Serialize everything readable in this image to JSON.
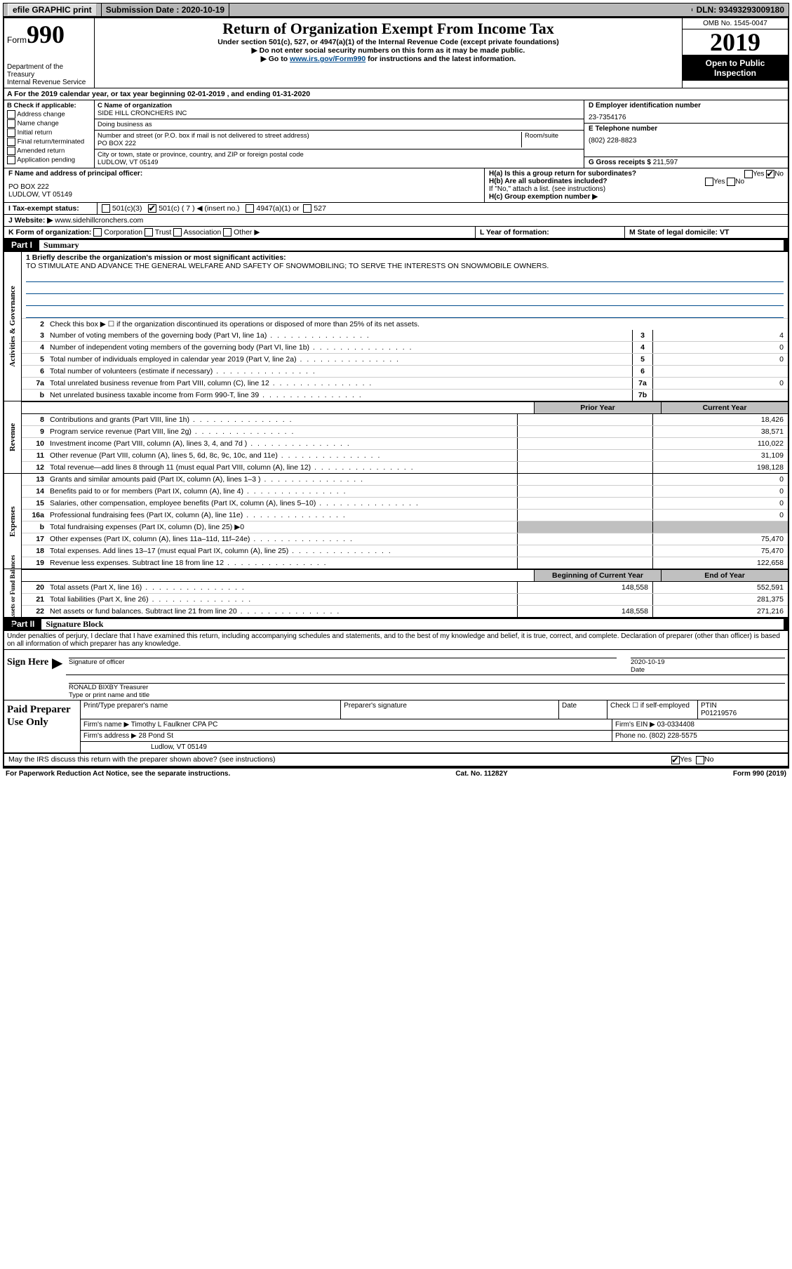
{
  "topbar": {
    "efile": "efile GRAPHIC print",
    "submission_label": "Submission Date : 2020-10-19",
    "dln": "DLN: 93493293009180"
  },
  "header": {
    "form_label": "Form",
    "form_no": "990",
    "dept": "Department of the Treasury\nInternal Revenue Service",
    "title": "Return of Organization Exempt From Income Tax",
    "sub1": "Under section 501(c), 527, or 4947(a)(1) of the Internal Revenue Code (except private foundations)",
    "sub2": "▶ Do not enter social security numbers on this form as it may be made public.",
    "sub3_pre": "▶ Go to ",
    "sub3_link": "www.irs.gov/Form990",
    "sub3_post": " for instructions and the latest information.",
    "omb": "OMB No. 1545-0047",
    "year": "2019",
    "open": "Open to Public Inspection"
  },
  "rowA": "A  For the 2019 calendar year, or tax year beginning 02-01-2019    , and ending 01-31-2020",
  "colB": {
    "label": "B Check if applicable:",
    "items": [
      "Address change",
      "Name change",
      "Initial return",
      "Final return/terminated",
      "Amended return",
      "Application pending"
    ]
  },
  "colC": {
    "name_label": "C Name of organization",
    "name": "SIDE HILL CRONCHERS INC",
    "dba_label": "Doing business as",
    "addr_label": "Number and street (or P.O. box if mail is not delivered to street address)",
    "addr": "PO BOX 222",
    "room_label": "Room/suite",
    "city_label": "City or town, state or province, country, and ZIP or foreign postal code",
    "city": "LUDLOW, VT  05149"
  },
  "colD": {
    "label": "D Employer identification number",
    "val": "23-7354176"
  },
  "colE": {
    "label": "E Telephone number",
    "val": "(802) 228-8823"
  },
  "colG": {
    "label": "G Gross receipts $",
    "val": "211,597"
  },
  "colF": {
    "label": "F  Name and address of principal officer:",
    "addr1": "PO BOX 222",
    "addr2": "LUDLOW, VT  05149"
  },
  "colH": {
    "a": "H(a)  Is this a group return for subordinates?",
    "a_yes": "Yes",
    "a_no": "No",
    "b": "H(b)  Are all subordinates included?",
    "b_note": "If \"No,\" attach a list. (see instructions)",
    "c": "H(c)  Group exemption number ▶"
  },
  "rowI": {
    "label": "I  Tax-exempt status:",
    "o1": "501(c)(3)",
    "o2": "501(c) ( 7 ) ◀ (insert no.)",
    "o3": "4947(a)(1) or",
    "o4": "527"
  },
  "rowJ": {
    "label": "J  Website: ▶",
    "val": "www.sidehillcronchers.com"
  },
  "rowK": {
    "label": "K Form of organization:",
    "o": [
      "Corporation",
      "Trust",
      "Association",
      "Other ▶"
    ]
  },
  "rowL": {
    "label": "L Year of formation:",
    "val": ""
  },
  "rowM": {
    "label": "M State of legal domicile: VT"
  },
  "part1": {
    "num": "Part I",
    "title": "Summary"
  },
  "mission": {
    "label": "1  Briefly describe the organization's mission or most significant activities:",
    "text": "TO STIMULATE AND ADVANCE THE GENERAL WELFARE AND SAFETY OF SNOWMOBILING; TO SERVE THE INTERESTS ON SNOWMOBILE OWNERS."
  },
  "gov": {
    "label": "Activities & Governance",
    "l2": "Check this box ▶ ☐  if the organization discontinued its operations or disposed of more than 25% of its net assets.",
    "lines": [
      {
        "n": "3",
        "d": "Number of voting members of the governing body (Part VI, line 1a)",
        "b": "3",
        "v": "4"
      },
      {
        "n": "4",
        "d": "Number of independent voting members of the governing body (Part VI, line 1b)",
        "b": "4",
        "v": "0"
      },
      {
        "n": "5",
        "d": "Total number of individuals employed in calendar year 2019 (Part V, line 2a)",
        "b": "5",
        "v": "0"
      },
      {
        "n": "6",
        "d": "Total number of volunteers (estimate if necessary)",
        "b": "6",
        "v": ""
      },
      {
        "n": "7a",
        "d": "Total unrelated business revenue from Part VIII, column (C), line 12",
        "b": "7a",
        "v": "0"
      },
      {
        "n": "b",
        "d": "Net unrelated business taxable income from Form 990-T, line 39",
        "b": "7b",
        "v": ""
      }
    ]
  },
  "rev": {
    "label": "Revenue",
    "hdr": [
      "Prior Year",
      "Current Year"
    ],
    "lines": [
      {
        "n": "8",
        "d": "Contributions and grants (Part VIII, line 1h)",
        "p": "",
        "c": "18,426"
      },
      {
        "n": "9",
        "d": "Program service revenue (Part VIII, line 2g)",
        "p": "",
        "c": "38,571"
      },
      {
        "n": "10",
        "d": "Investment income (Part VIII, column (A), lines 3, 4, and 7d )",
        "p": "",
        "c": "110,022"
      },
      {
        "n": "11",
        "d": "Other revenue (Part VIII, column (A), lines 5, 6d, 8c, 9c, 10c, and 11e)",
        "p": "",
        "c": "31,109"
      },
      {
        "n": "12",
        "d": "Total revenue—add lines 8 through 11 (must equal Part VIII, column (A), line 12)",
        "p": "",
        "c": "198,128"
      }
    ]
  },
  "exp": {
    "label": "Expenses",
    "lines": [
      {
        "n": "13",
        "d": "Grants and similar amounts paid (Part IX, column (A), lines 1–3 )",
        "p": "",
        "c": "0"
      },
      {
        "n": "14",
        "d": "Benefits paid to or for members (Part IX, column (A), line 4)",
        "p": "",
        "c": "0"
      },
      {
        "n": "15",
        "d": "Salaries, other compensation, employee benefits (Part IX, column (A), lines 5–10)",
        "p": "",
        "c": "0"
      },
      {
        "n": "16a",
        "d": "Professional fundraising fees (Part IX, column (A), line 11e)",
        "p": "",
        "c": "0"
      },
      {
        "n": "b",
        "d": "Total fundraising expenses (Part IX, column (D), line 25) ▶0",
        "shade": true
      },
      {
        "n": "17",
        "d": "Other expenses (Part IX, column (A), lines 11a–11d, 11f–24e)",
        "p": "",
        "c": "75,470"
      },
      {
        "n": "18",
        "d": "Total expenses. Add lines 13–17 (must equal Part IX, column (A), line 25)",
        "p": "",
        "c": "75,470"
      },
      {
        "n": "19",
        "d": "Revenue less expenses. Subtract line 18 from line 12",
        "p": "",
        "c": "122,658"
      }
    ]
  },
  "net": {
    "label": "Net Assets or Fund Balances",
    "hdr": [
      "Beginning of Current Year",
      "End of Year"
    ],
    "lines": [
      {
        "n": "20",
        "d": "Total assets (Part X, line 16)",
        "p": "148,558",
        "c": "552,591"
      },
      {
        "n": "21",
        "d": "Total liabilities (Part X, line 26)",
        "p": "",
        "c": "281,375"
      },
      {
        "n": "22",
        "d": "Net assets or fund balances. Subtract line 21 from line 20",
        "p": "148,558",
        "c": "271,216"
      }
    ]
  },
  "part2": {
    "num": "Part II",
    "title": "Signature Block"
  },
  "penalty": "Under penalties of perjury, I declare that I have examined this return, including accompanying schedules and statements, and to the best of my knowledge and belief, it is true, correct, and complete. Declaration of preparer (other than officer) is based on all information of which preparer has any knowledge.",
  "sign": {
    "here": "Sign Here",
    "sig_label": "Signature of officer",
    "date_label": "Date",
    "date": "2020-10-19",
    "name": "RONALD BIXBY Treasurer",
    "name_label": "Type or print name and title"
  },
  "prep": {
    "here": "Paid Preparer Use Only",
    "h": [
      "Print/Type preparer's name",
      "Preparer's signature",
      "Date"
    ],
    "check": "Check ☐ if self-employed",
    "ptin_label": "PTIN",
    "ptin": "P01219576",
    "firm_label": "Firm's name    ▶",
    "firm": "Timothy L Faulkner CPA PC",
    "ein_label": "Firm's EIN ▶",
    "ein": "03-0334408",
    "addr_label": "Firm's address ▶",
    "addr": "28 Pond St",
    "phone_label": "Phone no.",
    "phone": "(802) 228-5575",
    "city": "Ludlow, VT  05149"
  },
  "discuss": {
    "q": "May the IRS discuss this return with the preparer shown above? (see instructions)",
    "yes": "Yes",
    "no": "No"
  },
  "footer": {
    "l": "For Paperwork Reduction Act Notice, see the separate instructions.",
    "m": "Cat. No. 11282Y",
    "r": "Form 990 (2019)"
  }
}
